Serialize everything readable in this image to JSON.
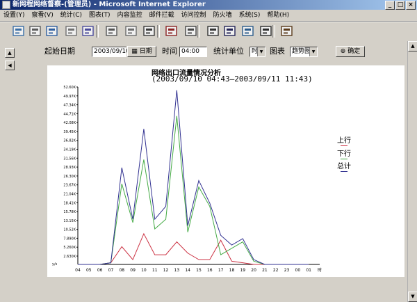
{
  "window": {
    "title": "新网程网络督察-(管理员) - Microsoft Internet Explorer"
  },
  "menu": [
    "设置(Y)",
    "察看(V)",
    "统计(C)",
    "图表(T)",
    "内容监控",
    "邮件拦截",
    "访问控制",
    "防火墙",
    "系统(S)",
    "帮助(H)"
  ],
  "toolbar_icons": [
    "network-icon",
    "host-icon",
    "window-icon",
    "settings-icon",
    "stamp-icon",
    "list-icon",
    "tools-icon",
    "clock-icon",
    "bar-chart-icon",
    "report-icon",
    "user-group-icon",
    "share-users-icon",
    "firewall-icon",
    "monitor-icon",
    "save-icon"
  ],
  "filters": {
    "start_label": "起始日期",
    "start_value": "2003/09/10",
    "date_button": "日期",
    "time_label": "时间",
    "time_value": "04:00",
    "unit_label": "统计单位",
    "unit_value": "时",
    "chart_label": "图表",
    "chart_value": "趋势图",
    "confirm_button": "确定"
  },
  "chart_data": {
    "type": "line",
    "title": "网络出口流量情况分析",
    "subtitle": "(2003/09/10 04:43—2003/09/11 11:43)",
    "ylabel": "y/s",
    "y_ticks": [
      "2.630K",
      "5.260K",
      "7.890K",
      "10.52K",
      "13.15K",
      "15.78K",
      "18.41K",
      "21.04K",
      "23.67K",
      "26.30K",
      "28.93K",
      "31.56K",
      "34.19K",
      "36.82K",
      "39.45K",
      "42.08K",
      "44.71K",
      "47.34K",
      "49.97K",
      "52.60K"
    ],
    "x_labels": [
      "04",
      "05",
      "06",
      "07",
      "08",
      "09",
      "10",
      "11",
      "12",
      "13",
      "14",
      "15",
      "16",
      "17",
      "18",
      "19",
      "20",
      "21",
      "22",
      "23",
      "00",
      "01",
      "时"
    ],
    "ylim": [
      0,
      55
    ],
    "series": [
      {
        "name": "上行",
        "color": "#cc3344",
        "values": [
          0,
          0,
          0,
          0.5,
          5.5,
          1.5,
          9.5,
          3,
          3,
          7,
          3.5,
          1.5,
          1.5,
          7.5,
          1,
          0.5,
          0,
          0,
          0,
          0,
          0,
          0
        ]
      },
      {
        "name": "下行",
        "color": "#44aa44",
        "values": [
          0,
          0,
          0,
          0.5,
          25,
          13,
          32.5,
          11,
          14,
          46,
          10,
          24,
          18,
          3,
          5,
          7,
          1,
          0,
          0,
          0,
          0,
          0
        ]
      },
      {
        "name": "总计",
        "color": "#303090",
        "values": [
          0,
          0,
          0,
          0.5,
          30,
          14,
          42,
          14,
          18,
          54,
          12,
          26,
          19,
          9,
          6,
          8,
          1.5,
          0,
          0,
          0,
          0,
          0
        ]
      }
    ],
    "grid": false,
    "legend": "right"
  }
}
